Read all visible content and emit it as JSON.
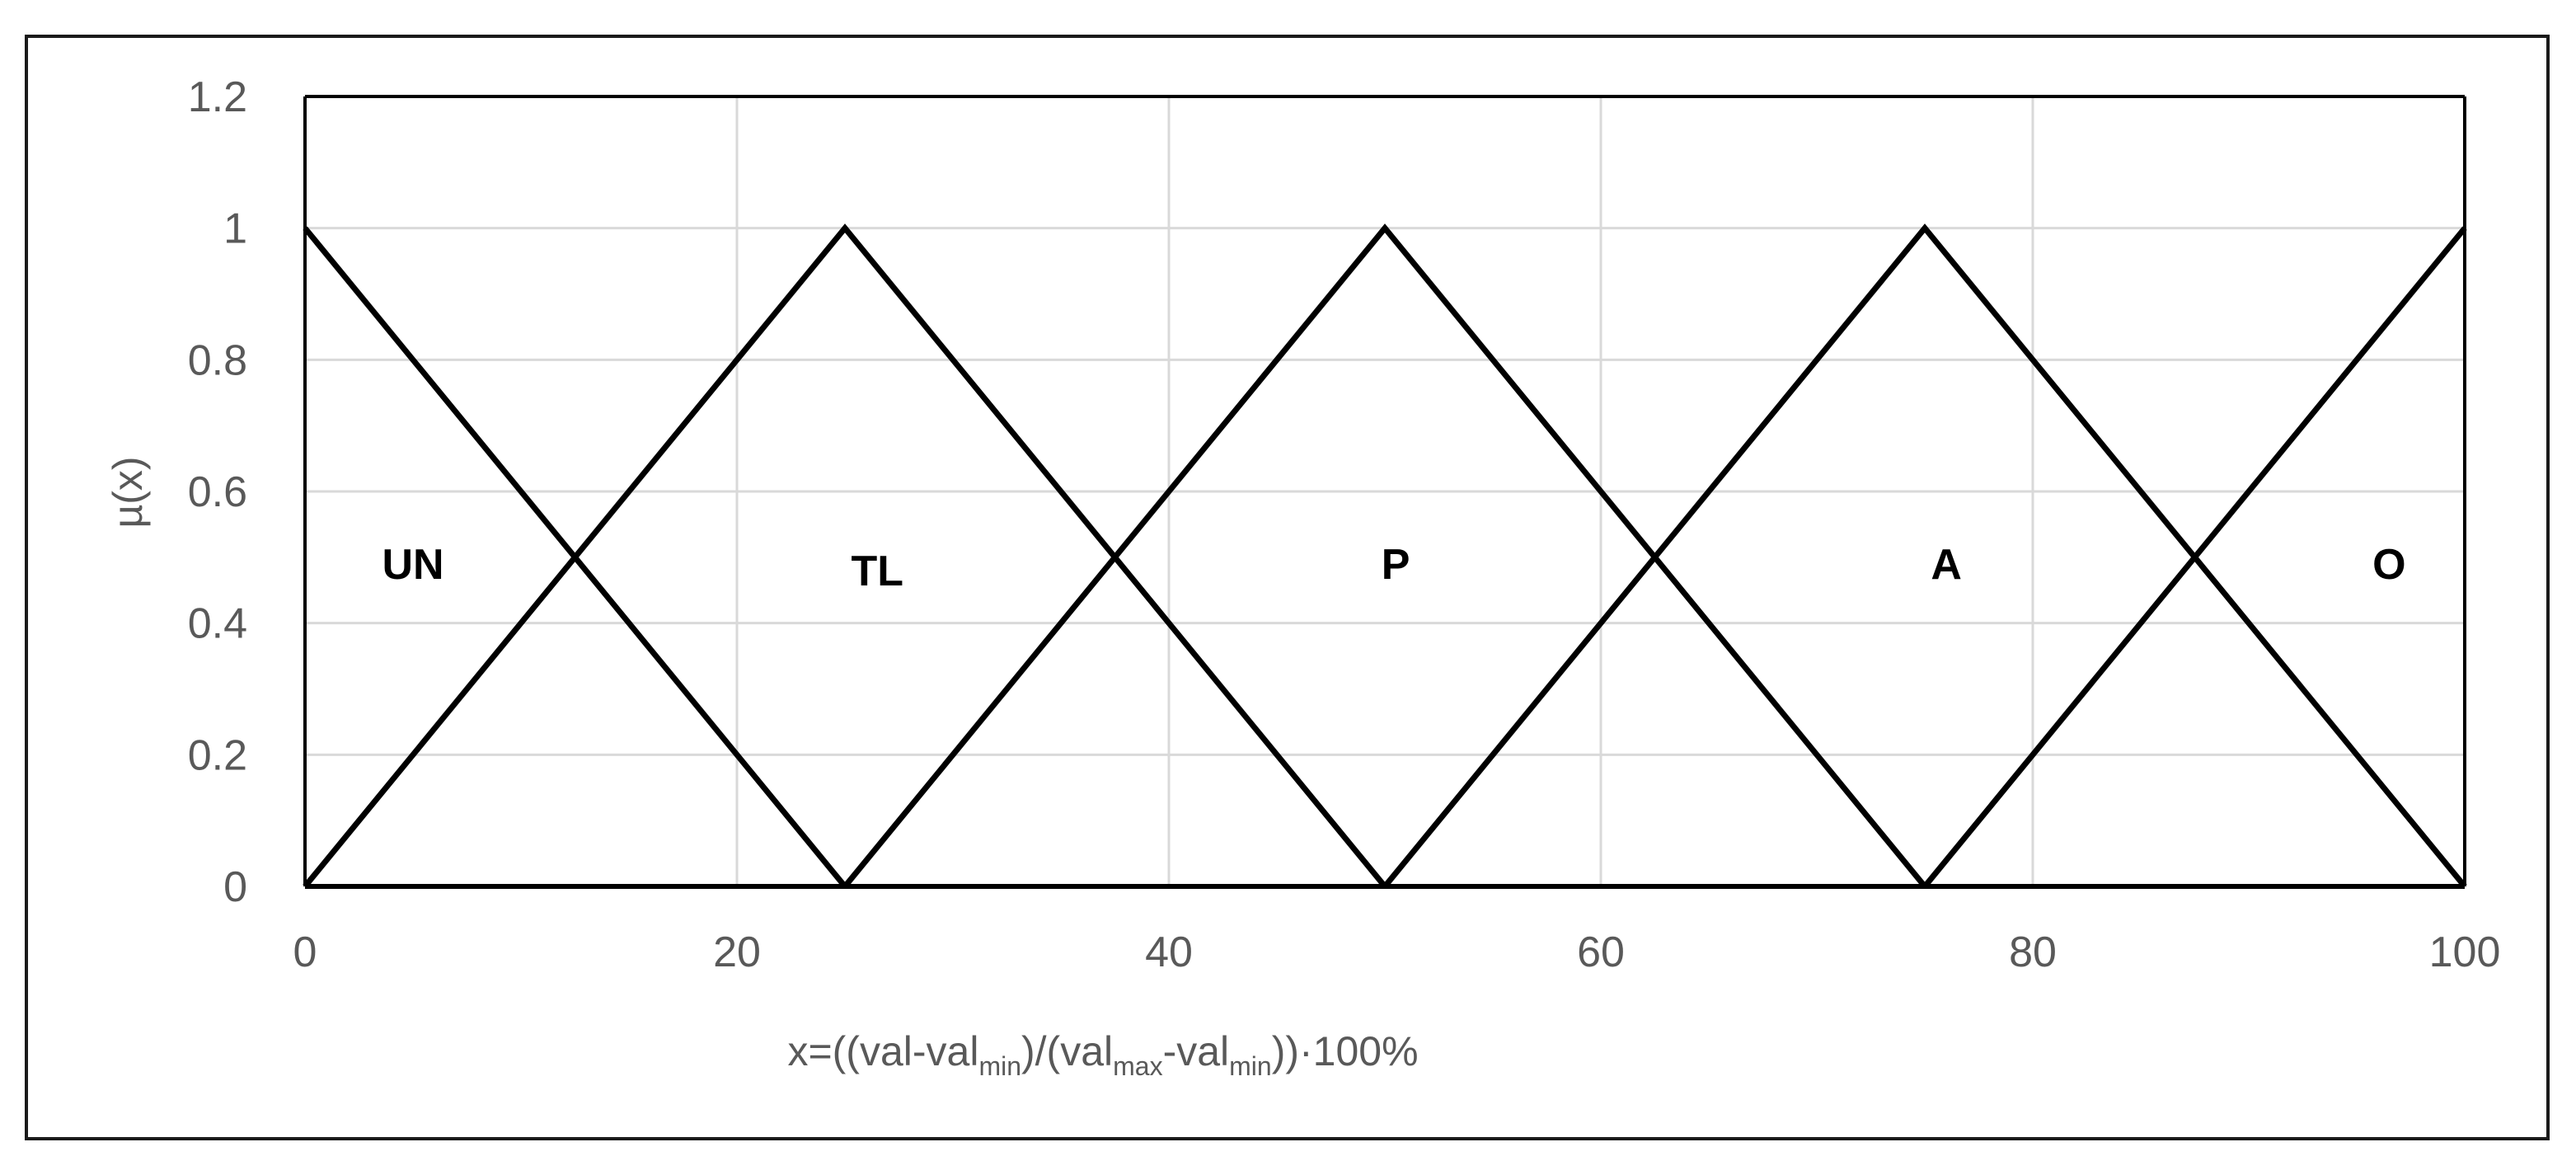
{
  "chart_data": {
    "type": "line",
    "xlim": [
      0,
      100
    ],
    "ylim": [
      0,
      1.2
    ],
    "x_ticks": [
      "0",
      "20",
      "40",
      "60",
      "80",
      "100"
    ],
    "y_ticks": [
      "0",
      "0.2",
      "0.4",
      "0.6",
      "0.8",
      "1",
      "1.2"
    ],
    "ylabel": "µ(x)",
    "xlabel": {
      "prefix": "x=((val-val",
      "sub1": "min",
      "mid1": ")/(val",
      "sub2": "max",
      "mid2": "-val",
      "sub3": "min",
      "suffix": "))·100%"
    },
    "grid": true,
    "series": [
      {
        "x": [
          0,
          25
        ],
        "y": [
          1,
          0
        ]
      },
      {
        "x": [
          0,
          25,
          50
        ],
        "y": [
          0,
          1,
          0
        ]
      },
      {
        "x": [
          25,
          50,
          75
        ],
        "y": [
          0,
          1,
          0
        ]
      },
      {
        "x": [
          50,
          75,
          100
        ],
        "y": [
          0,
          1,
          0
        ]
      },
      {
        "x": [
          75,
          100
        ],
        "y": [
          0,
          1
        ]
      }
    ],
    "annotations": [
      {
        "text": "UN",
        "x": 5,
        "y": 0.49
      },
      {
        "text": "TL",
        "x": 26.5,
        "y": 0.48
      },
      {
        "text": "P",
        "x": 50.5,
        "y": 0.49
      },
      {
        "text": "A",
        "x": 76,
        "y": 0.49
      },
      {
        "text": "O",
        "x": 96.5,
        "y": 0.49
      }
    ],
    "colors": {
      "line": "#000000",
      "grid": "#d9d9d9",
      "tick_text": "#595959"
    }
  }
}
